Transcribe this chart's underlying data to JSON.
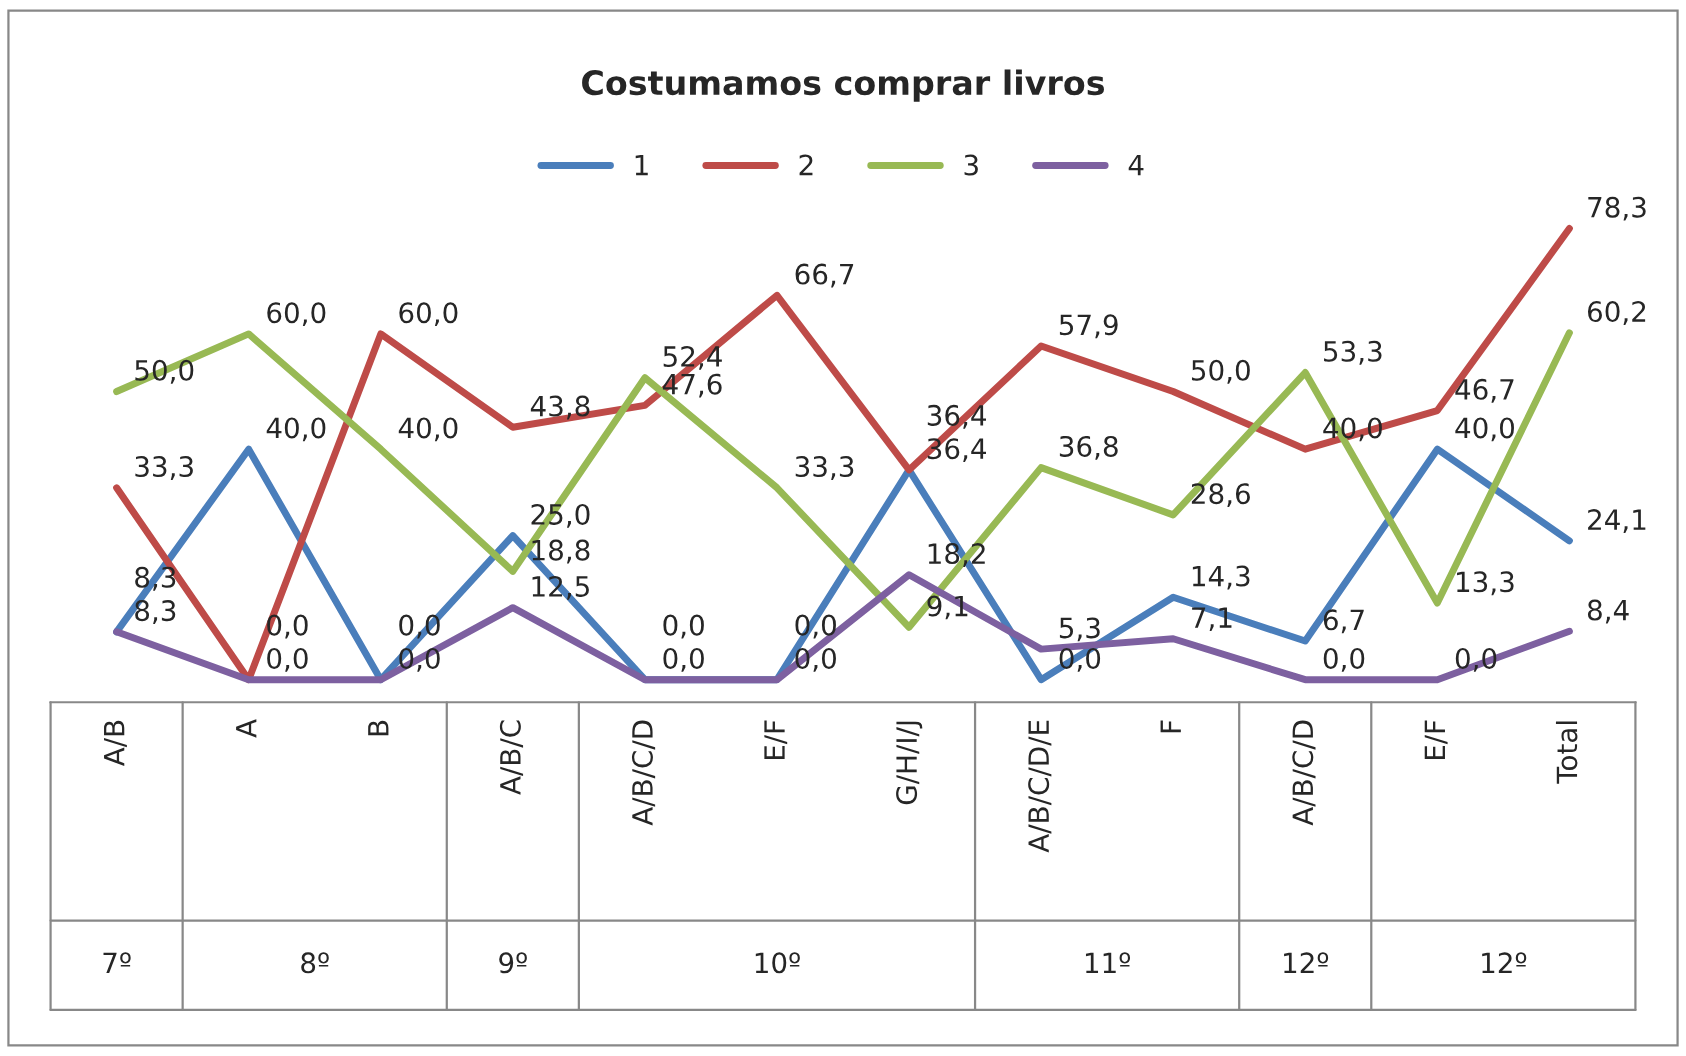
{
  "chart_data": {
    "type": "line",
    "title": "Costumamos comprar livros",
    "categories": [
      "A/B",
      "A",
      "B",
      "A/B/C",
      "A/B/C/D",
      "E/F",
      "G/H/I/J",
      "A/B/C/D/E",
      "F",
      "A/B/C/D",
      "E/F",
      "Total"
    ],
    "series": [
      {
        "name": "1",
        "color": "#4a7ebb",
        "values": [
          8.3,
          40.0,
          0.0,
          25.0,
          0.0,
          0.0,
          36.4,
          0.0,
          14.3,
          6.7,
          40.0,
          24.1
        ],
        "value_labels": [
          "8,3",
          "40,0",
          "0,0",
          "25,0",
          "0,0",
          "0,0",
          "36,4",
          "0,0",
          "14,3",
          "6,7",
          "40,0",
          "24,1"
        ]
      },
      {
        "name": "2",
        "color": "#be4b48",
        "values": [
          33.3,
          0.0,
          60.0,
          43.8,
          47.6,
          66.7,
          36.4,
          57.9,
          50.0,
          40.0,
          46.7,
          78.3
        ],
        "value_labels": [
          "33,3",
          "0,0",
          "60,0",
          "43,8",
          "47,6",
          "66,7",
          "36,4",
          "57,9",
          "50,0",
          "40,0",
          "46,7",
          "78,3"
        ]
      },
      {
        "name": "3",
        "color": "#98b954",
        "values": [
          50.0,
          60.0,
          40.0,
          18.8,
          52.4,
          33.3,
          9.1,
          36.8,
          28.6,
          53.3,
          13.3,
          60.2
        ],
        "value_labels": [
          "50,0",
          "60,0",
          "40,0",
          "18,8",
          "52,4",
          "33,3",
          "9,1",
          "36,8",
          "28,6",
          "53,3",
          "13,3",
          "60,2"
        ]
      },
      {
        "name": "4",
        "color": "#7d60a0",
        "values": [
          8.3,
          0.0,
          0.0,
          12.5,
          0.0,
          0.0,
          18.2,
          5.3,
          7.1,
          0.0,
          0.0,
          8.4
        ],
        "value_labels": [
          "8,3",
          "0,0",
          "0,0",
          "12,5",
          "0,0",
          "0,0",
          "18,2",
          "5,3",
          "7,1",
          "0,0",
          "0,0",
          "8,4"
        ]
      }
    ],
    "annotations": [
      "7º",
      "8º",
      "9º",
      "10º",
      "11º",
      "12º",
      "12º"
    ],
    "legend": "top",
    "grid": false,
    "marker": "none",
    "line_style": "solid",
    "tick_labels": "x"
  }
}
